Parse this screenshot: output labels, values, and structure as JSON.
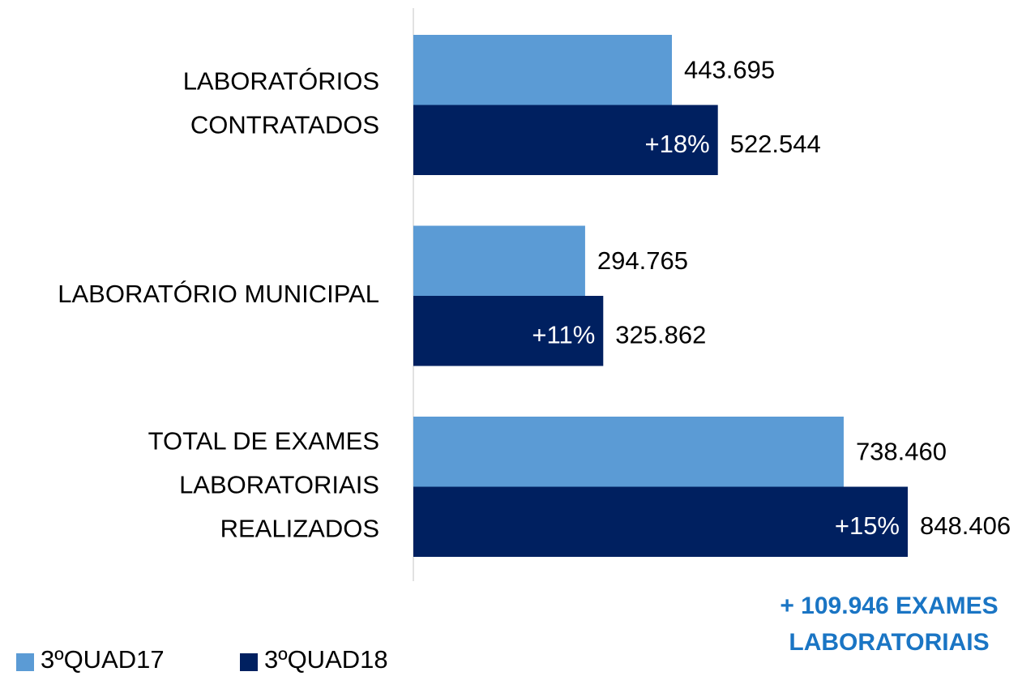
{
  "chart_data": {
    "type": "bar",
    "orientation": "horizontal",
    "categories": [
      [
        "LABORATÓRIOS",
        "CONTRATADOS"
      ],
      [
        "LABORATÓRIO MUNICIPAL"
      ],
      [
        "TOTAL DE EXAMES",
        "LABORATORIAIS",
        "REALIZADOS"
      ]
    ],
    "series": [
      {
        "name": "3ºQUAD17",
        "color": "#5b9bd5",
        "values": [
          443695,
          294765,
          738460
        ],
        "value_labels": [
          "443.695",
          "294.765",
          "738.460"
        ]
      },
      {
        "name": "3ºQUAD18",
        "color": "#002060",
        "values": [
          522544,
          325862,
          848406
        ],
        "value_labels": [
          "522.544",
          "325.862",
          "848.406"
        ],
        "change_labels": [
          "+18%",
          "+11%",
          "+15%"
        ]
      }
    ],
    "xlim": [
      0,
      1000000
    ],
    "legend": "bottom-left",
    "annotation": [
      "+ 109.946 EXAMES",
      "LABORATORIAIS"
    ],
    "annotation_color": "#1a75c4"
  }
}
